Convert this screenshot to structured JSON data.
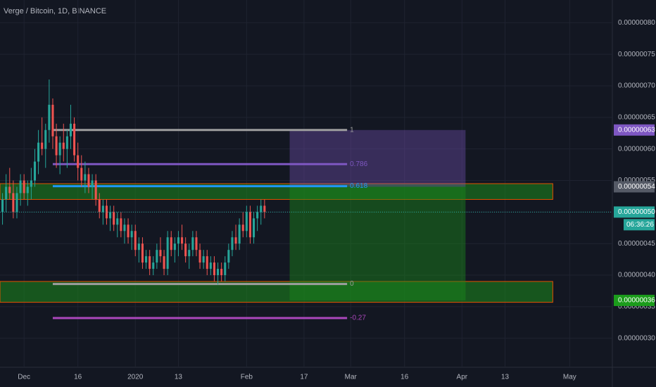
{
  "chart_data": {
    "type": "candlestick",
    "title": "Verge / Bitcoin, 1D, BINANCE",
    "x": [
      -6,
      -5,
      -4,
      -3,
      -2,
      -1,
      0,
      1,
      2,
      3,
      4,
      5,
      6,
      7,
      8,
      9,
      10,
      11,
      12,
      13,
      14,
      15,
      16,
      17,
      18,
      19,
      20,
      21,
      22,
      23,
      24,
      25,
      26,
      27,
      28,
      29,
      30,
      31,
      32,
      33,
      34,
      35,
      36,
      37,
      38,
      39,
      40,
      41,
      42,
      43,
      44,
      45,
      46,
      47,
      48,
      49,
      50,
      51,
      52,
      53,
      54,
      55,
      56,
      57,
      58,
      59,
      60,
      61,
      62,
      63,
      64,
      65,
      66,
      67
    ],
    "open": [
      5e-07,
      5.2e-07,
      5.4e-07,
      5.3e-07,
      5e-07,
      5.3e-07,
      5.5e-07,
      5.3e-07,
      5.4e-07,
      5.5e-07,
      5.8e-07,
      6.1e-07,
      6e-07,
      6.3e-07,
      6.7e-07,
      6.2e-07,
      5.9e-07,
      6.1e-07,
      6e-07,
      6.2e-07,
      6.4e-07,
      5.9e-07,
      5.7e-07,
      5.5e-07,
      5.6e-07,
      5.4e-07,
      5.5e-07,
      5.2e-07,
      5e-07,
      5.1e-07,
      4.9e-07,
      5e-07,
      4.8e-07,
      4.9e-07,
      4.7e-07,
      4.8e-07,
      4.6e-07,
      4.7e-07,
      4.4e-07,
      4.5e-07,
      4.2e-07,
      4.3e-07,
      4.1e-07,
      4.2e-07,
      4.4e-07,
      4.3e-07,
      4.1e-07,
      4.6e-07,
      4.4e-07,
      4.5e-07,
      4.6e-07,
      4.5e-07,
      4.3e-07,
      4.4e-07,
      4.6e-07,
      4.4e-07,
      4.2e-07,
      4.3e-07,
      4.1e-07,
      4.2e-07,
      4e-07,
      4.1e-07,
      4e-07,
      4.2e-07,
      4.4e-07,
      4.6e-07,
      4.5e-07,
      4.8e-07,
      4.7e-07,
      5e-07,
      4.6e-07,
      4.9e-07,
      5e-07,
      5.1e-07
    ],
    "high": [
      5.3e-07,
      5.6e-07,
      5.7e-07,
      5.5e-07,
      5.4e-07,
      5.6e-07,
      5.6e-07,
      5.5e-07,
      5.7e-07,
      6e-07,
      6.3e-07,
      6.5e-07,
      6.4e-07,
      7.1e-07,
      6.8e-07,
      6.4e-07,
      6.2e-07,
      6.4e-07,
      6.3e-07,
      6.7e-07,
      6.5e-07,
      6.1e-07,
      5.9e-07,
      5.8e-07,
      5.7e-07,
      5.6e-07,
      5.6e-07,
      5.3e-07,
      5.2e-07,
      5.2e-07,
      5.1e-07,
      5.1e-07,
      5e-07,
      5e-07,
      4.9e-07,
      4.9e-07,
      4.8e-07,
      4.8e-07,
      4.6e-07,
      4.6e-07,
      4.4e-07,
      4.4e-07,
      4.3e-07,
      4.5e-07,
      4.6e-07,
      4.4e-07,
      4.7e-07,
      4.7e-07,
      4.6e-07,
      4.7e-07,
      4.8e-07,
      4.6e-07,
      4.5e-07,
      4.7e-07,
      4.7e-07,
      4.5e-07,
      4.4e-07,
      4.4e-07,
      4.3e-07,
      4.3e-07,
      4.2e-07,
      4.2e-07,
      4.3e-07,
      4.5e-07,
      4.7e-07,
      4.8e-07,
      4.9e-07,
      5e-07,
      5.1e-07,
      5.1e-07,
      5e-07,
      5.1e-07,
      5.2e-07,
      5.2e-07
    ],
    "low": [
      4.8e-07,
      5e-07,
      5.2e-07,
      4.9e-07,
      4.9e-07,
      5.1e-07,
      5.2e-07,
      5.1e-07,
      5.2e-07,
      5.4e-07,
      5.6e-07,
      5.9e-07,
      5.7e-07,
      6.1e-07,
      6e-07,
      5.7e-07,
      5.6e-07,
      5.8e-07,
      5.7e-07,
      6e-07,
      5.8e-07,
      5.5e-07,
      5.4e-07,
      5.3e-07,
      5.3e-07,
      5.2e-07,
      5.1e-07,
      4.9e-07,
      4.8e-07,
      4.8e-07,
      4.7e-07,
      4.7e-07,
      4.6e-07,
      4.6e-07,
      4.5e-07,
      4.5e-07,
      4.4e-07,
      4.3e-07,
      4.2e-07,
      4.1e-07,
      4.1e-07,
      4e-07,
      4e-07,
      4.1e-07,
      4.2e-07,
      4e-07,
      4e-07,
      4.3e-07,
      4.2e-07,
      4.3e-07,
      4.4e-07,
      4.2e-07,
      4.1e-07,
      4.3e-07,
      4.3e-07,
      4.1e-07,
      4.1e-07,
      4e-07,
      4e-07,
      3.9e-07,
      3.85e-07,
      3.9e-07,
      3.9e-07,
      4.1e-07,
      4.3e-07,
      4.4e-07,
      4.4e-07,
      4.6e-07,
      4.6e-07,
      4.5e-07,
      4.5e-07,
      4.7e-07,
      4.8e-07,
      4.9e-07
    ],
    "close": [
      5.2e-07,
      5.4e-07,
      5.3e-07,
      5e-07,
      5.3e-07,
      5.5e-07,
      5.3e-07,
      5.4e-07,
      5.5e-07,
      5.8e-07,
      6.1e-07,
      6e-07,
      6.3e-07,
      6.7e-07,
      6.2e-07,
      5.9e-07,
      6.1e-07,
      6e-07,
      6.2e-07,
      6.4e-07,
      5.9e-07,
      5.7e-07,
      5.5e-07,
      5.6e-07,
      5.4e-07,
      5.5e-07,
      5.2e-07,
      5e-07,
      5.1e-07,
      4.9e-07,
      5e-07,
      4.8e-07,
      4.9e-07,
      4.7e-07,
      4.8e-07,
      4.6e-07,
      4.7e-07,
      4.4e-07,
      4.5e-07,
      4.2e-07,
      4.3e-07,
      4.1e-07,
      4.2e-07,
      4.4e-07,
      4.3e-07,
      4.1e-07,
      4.6e-07,
      4.4e-07,
      4.5e-07,
      4.6e-07,
      4.5e-07,
      4.3e-07,
      4.4e-07,
      4.6e-07,
      4.4e-07,
      4.2e-07,
      4.3e-07,
      4.1e-07,
      4.2e-07,
      4e-07,
      4.1e-07,
      4e-07,
      4.2e-07,
      4.4e-07,
      4.6e-07,
      4.5e-07,
      4.8e-07,
      4.7e-07,
      5e-07,
      4.6e-07,
      4.9e-07,
      5e-07,
      5.1e-07,
      5e-07
    ],
    "up_color": "#26a69a",
    "down_color": "#ef5350",
    "xlim": [
      -6.7,
      163.9
    ],
    "ylim": [
      2.54e-07,
      8.36e-07
    ],
    "xticks": [
      {
        "value": 0,
        "label": "Dec"
      },
      {
        "value": 15,
        "label": "16"
      },
      {
        "value": 31,
        "label": "2020"
      },
      {
        "value": 43,
        "label": "13"
      },
      {
        "value": 62,
        "label": "Feb"
      },
      {
        "value": 78,
        "label": "17"
      },
      {
        "value": 91,
        "label": "Mar"
      },
      {
        "value": 106,
        "label": "16"
      },
      {
        "value": 122,
        "label": "Apr"
      },
      {
        "value": 134,
        "label": "13"
      },
      {
        "value": 152,
        "label": "May"
      }
    ],
    "yticks": [
      {
        "value": 3e-07,
        "label": "0.00000030"
      },
      {
        "value": 3.5e-07,
        "label": "0.00000035"
      },
      {
        "value": 4e-07,
        "label": "0.00000040"
      },
      {
        "value": 4.5e-07,
        "label": "0.00000045"
      },
      {
        "value": 5e-07,
        "label": "0.00000050"
      },
      {
        "value": 5.5e-07,
        "label": "0.00000055"
      },
      {
        "value": 6e-07,
        "label": "0.00000060"
      },
      {
        "value": 6.5e-07,
        "label": "0.00000065"
      },
      {
        "value": 7e-07,
        "label": "0.00000070"
      },
      {
        "value": 7.5e-07,
        "label": "0.00000075"
      },
      {
        "value": 8e-07,
        "label": "0.00000080"
      }
    ],
    "grid": true,
    "zones": [
      {
        "x": [
          -6.7,
          147.3
        ],
        "y": [
          5.2e-07,
          5.45e-07
        ],
        "color": "#1b8a1b"
      },
      {
        "x": [
          -6.7,
          147.3
        ],
        "y": [
          3.57e-07,
          3.9e-07
        ],
        "color": "#1b8a1b"
      }
    ],
    "position": {
      "x": [
        74,
        123
      ],
      "stop": [
        5.4e-07,
        6.3e-07
      ],
      "target": [
        3.6e-07,
        5.4e-07
      ]
    },
    "fib": {
      "x": [
        8,
        90
      ],
      "levels": [
        {
          "value": 6.3e-07,
          "label": "1",
          "color": "#9e9e9e"
        },
        {
          "value": 5.76e-07,
          "label": "0.786",
          "color": "#7e57c2"
        },
        {
          "value": 5.41e-07,
          "label": "0.618",
          "color": "#2196f3"
        },
        {
          "value": 3.86e-07,
          "label": "0",
          "color": "#9e9e9e"
        },
        {
          "value": 3.32e-07,
          "label": "-0.27",
          "color": "#ab47bc"
        }
      ]
    },
    "badges": [
      {
        "value": 6.3e-07,
        "label": "0.00000063",
        "color": "#7e57c2"
      },
      {
        "value": 5.4e-07,
        "label": "0.00000054",
        "color": "#555a66"
      },
      {
        "value": 5e-07,
        "label": "0.00000050",
        "color": "#26a69a"
      },
      {
        "value": 3.6e-07,
        "label": "0.00000036",
        "color": "#1b9c1b"
      }
    ],
    "countdown": "06:36:26"
  }
}
